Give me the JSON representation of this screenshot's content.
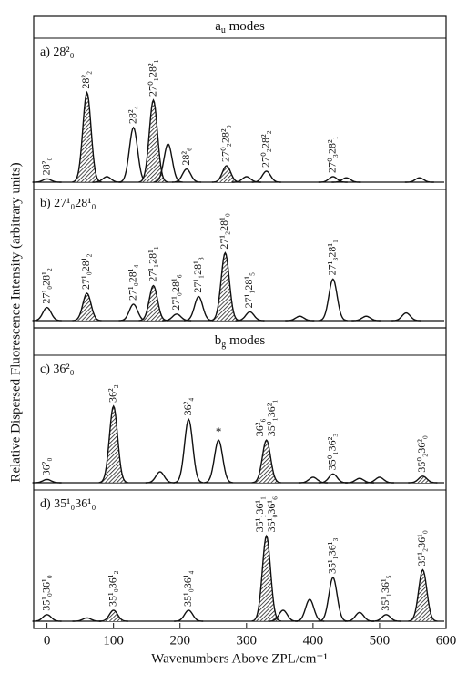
{
  "chart_data": {
    "type": "line",
    "xlabel": "Wavenumbers Above ZPL/cm⁻¹",
    "ylabel": "Relative Dispersed Fluorescence Intensity (arbitrary units)",
    "xlim": [
      -20,
      600
    ],
    "xticks": [
      0,
      100,
      200,
      300,
      400,
      500,
      600
    ],
    "ylim": [
      0,
      1
    ],
    "sections": [
      {
        "header": {
          "main": "a",
          "sub": "u",
          "rest": " modes"
        },
        "panels": [
          {
            "label": "a) 28²₀",
            "x": [
              0,
              60,
              90,
              130,
              160,
              182,
              210,
              270,
              300,
              330,
              430,
              450,
              560
            ],
            "values": [
              0.03,
              0.82,
              0.05,
              0.5,
              0.75,
              0.35,
              0.12,
              0.15,
              0.05,
              0.1,
              0.05,
              0.04,
              0.04
            ],
            "hatched": [
              false,
              true,
              false,
              false,
              true,
              false,
              false,
              true,
              false,
              false,
              false,
              false,
              false
            ],
            "labels": [
              "28²₀",
              "28²₂",
              null,
              "28²₄",
              "27⁰₁28²₁",
              null,
              "28²₆",
              "27⁰₂28²₀",
              null,
              "27⁰₂28²₂",
              "27⁰₃28²₁",
              null,
              null
            ]
          },
          {
            "label": "b) 27¹₀28¹₀",
            "x": [
              0,
              60,
              130,
              160,
              195,
              228,
              268,
              305,
              380,
              430,
              480,
              540
            ],
            "values": [
              0.12,
              0.25,
              0.15,
              0.32,
              0.06,
              0.22,
              0.62,
              0.08,
              0.04,
              0.38,
              0.04,
              0.07
            ],
            "hatched": [
              false,
              true,
              false,
              true,
              false,
              false,
              true,
              false,
              false,
              false,
              false,
              false
            ],
            "labels": [
              "27¹₀28¹₂",
              "27¹₀28¹₂",
              "27¹₀28¹₄",
              "27¹₁28¹₁",
              "27¹₀28¹₆",
              "27¹₁28¹₃",
              "27¹₂28¹₀",
              "27¹₁28¹₅",
              null,
              "27¹₃28¹₁",
              null,
              null
            ]
          }
        ]
      },
      {
        "header": {
          "main": "b",
          "sub": "g",
          "rest": " modes"
        },
        "panels": [
          {
            "label": "c) 36²₀",
            "x": [
              0,
              100,
              170,
              213,
              258,
              330,
              400,
              430,
              470,
              500,
              565
            ],
            "values": [
              0.03,
              0.7,
              0.1,
              0.58,
              0.39,
              0.39,
              0.05,
              0.08,
              0.04,
              0.05,
              0.06
            ],
            "hatched": [
              false,
              true,
              false,
              false,
              false,
              true,
              false,
              false,
              false,
              false,
              true
            ],
            "labels": [
              "36²₀",
              "36²₂",
              null,
              "36²₄",
              "*",
              [
                "36²₆",
                "35⁰₁36²₁"
              ],
              null,
              "35⁰₁36²₃",
              null,
              null,
              "35⁰₂36²₀"
            ]
          },
          {
            "label": "d) 35¹₀36¹₀",
            "x": [
              0,
              60,
              100,
              213,
              330,
              355,
              395,
              430,
              470,
              510,
              565
            ],
            "values": [
              0.06,
              0.03,
              0.1,
              0.1,
              0.78,
              0.1,
              0.2,
              0.4,
              0.08,
              0.06,
              0.47
            ],
            "hatched": [
              false,
              false,
              true,
              false,
              true,
              false,
              false,
              false,
              false,
              false,
              true
            ],
            "labels": [
              "35¹₀36¹₀",
              null,
              "35¹₀36¹₂",
              "35¹₀36¹₄",
              [
                "35¹₁36¹₁",
                "35¹₀36¹₆"
              ],
              null,
              null,
              "35¹₁36¹₃",
              null,
              "35¹₁36¹₅",
              "35¹₂36¹₀"
            ]
          }
        ]
      }
    ]
  }
}
